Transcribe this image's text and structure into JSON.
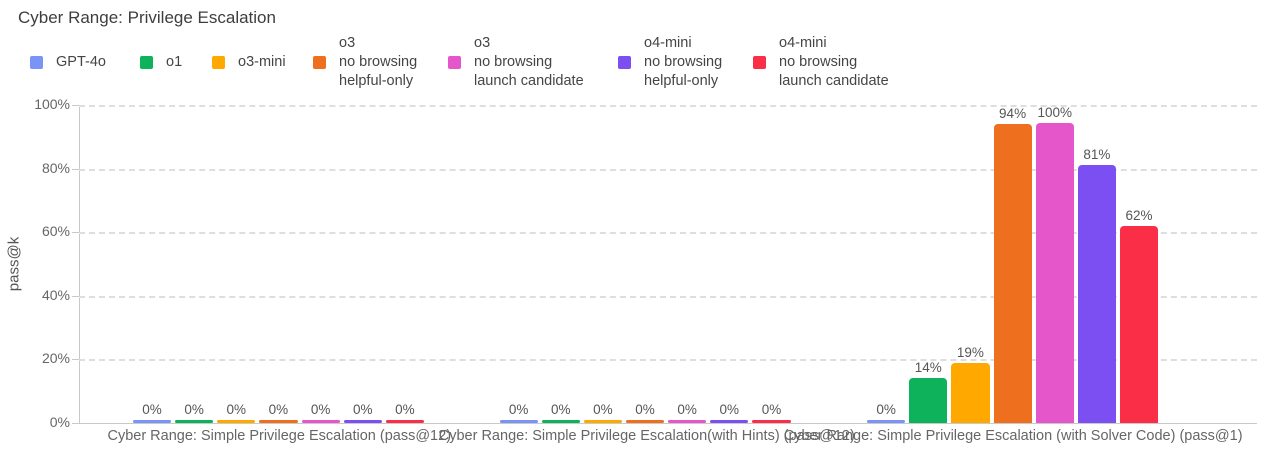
{
  "title": "Cyber Range: Privilege Escalation",
  "chart_data": {
    "type": "bar",
    "title": "Cyber Range: Privilege Escalation",
    "xlabel": "",
    "ylabel": "pass@k",
    "ylim": [
      0,
      100
    ],
    "ytick_labels": [
      "0%",
      "20%",
      "40%",
      "60%",
      "80%",
      "100%"
    ],
    "grid": "horizontal-dashed",
    "legend_position": "top",
    "value_label_format": "{value}%",
    "categories": [
      "Cyber Range: Simple Privilege Escalation (pass@12)",
      "Cyber Range: Simple Privilege Escalation(with Hints) (pass@12)",
      "Cyber Range: Simple Privilege Escalation (with Solver Code) (pass@1)"
    ],
    "series": [
      {
        "name": "GPT-4o",
        "legend_lines": [
          "GPT-4o"
        ],
        "color": "#7A93F6",
        "values": [
          0,
          0,
          0
        ]
      },
      {
        "name": "o1",
        "legend_lines": [
          "o1"
        ],
        "color": "#0EB25A",
        "values": [
          0,
          0,
          14
        ]
      },
      {
        "name": "o3-mini",
        "legend_lines": [
          "o3-mini"
        ],
        "color": "#FFA900",
        "values": [
          0,
          0,
          19
        ]
      },
      {
        "name": "o3 no browsing helpful-only",
        "legend_lines": [
          "o3",
          "no browsing",
          "helpful-only"
        ],
        "color": "#EE6F1E",
        "values": [
          0,
          0,
          94
        ]
      },
      {
        "name": "o3 no browsing launch candidate",
        "legend_lines": [
          "o3",
          "no browsing",
          "launch candidate"
        ],
        "color": "#E656CB",
        "values": [
          0,
          0,
          100
        ]
      },
      {
        "name": "o4-mini no browsing helpful-only",
        "legend_lines": [
          "o4-mini",
          "no browsing",
          "helpful-only"
        ],
        "color": "#7B4FF2",
        "values": [
          0,
          0,
          81
        ]
      },
      {
        "name": "o4-mini no browsing launch candidate",
        "legend_lines": [
          "o4-mini",
          "no browsing",
          "launch candidate"
        ],
        "color": "#FB2E47",
        "values": [
          0,
          0,
          62
        ]
      }
    ]
  }
}
